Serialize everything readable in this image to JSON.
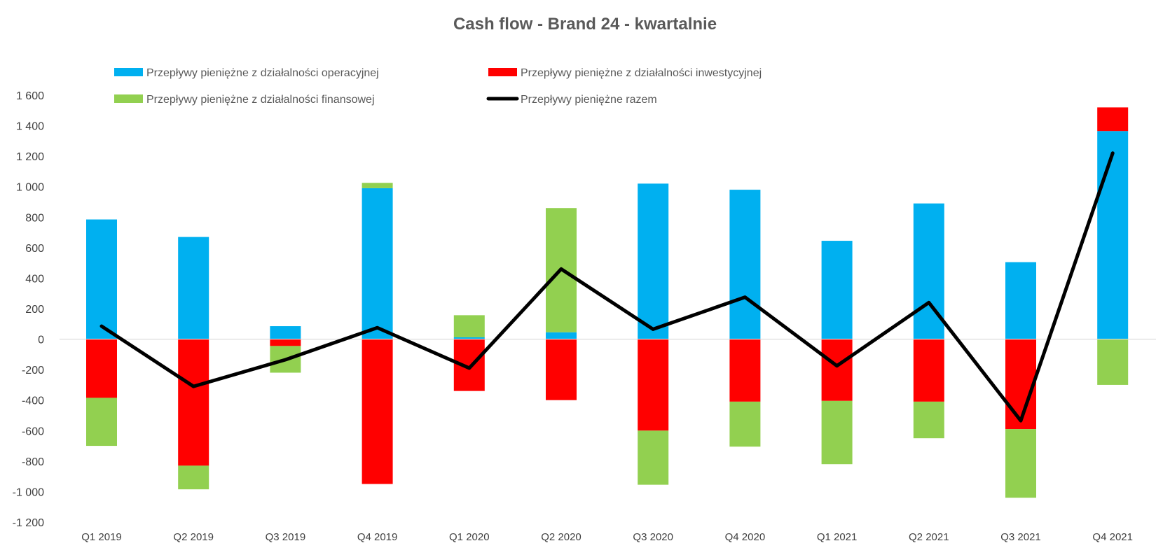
{
  "chart_data": {
    "type": "bar",
    "stacked": true,
    "title": "Cash flow - Brand 24 - kwartalnie",
    "xlabel": "",
    "ylabel": "",
    "ylim": [
      -1200,
      1600
    ],
    "yticks": [
      1600,
      1400,
      1200,
      1000,
      800,
      600,
      400,
      200,
      0,
      -200,
      -400,
      -600,
      -800,
      -1000,
      -1200
    ],
    "ytick_labels": [
      "1 600",
      "1 400",
      "1 200",
      "1 000",
      "800",
      "600",
      "400",
      "200",
      "0",
      "-200",
      "-400",
      "-600",
      "-800",
      "-1 000",
      "-1 200"
    ],
    "grid": false,
    "legend_position": "top",
    "categories": [
      "Q1 2019",
      "Q2 2019",
      "Q3 2019",
      "Q4 2019",
      "Q1 2020",
      "Q2 2020",
      "Q3 2020",
      "Q4 2020",
      "Q1 2021",
      "Q2 2021",
      "Q3 2021",
      "Q4 2021"
    ],
    "series": [
      {
        "name": "Przepływy pieniężne z działalności operacyjnej",
        "kind": "bar",
        "color": "#00b0f0",
        "values": [
          785,
          670,
          85,
          990,
          12,
          45,
          1020,
          980,
          645,
          890,
          505,
          1365
        ]
      },
      {
        "name": "Przepływy pieniężne z działalności inwestycyjnej",
        "kind": "bar",
        "color": "#ff0000",
        "values": [
          -385,
          -830,
          -45,
          -950,
          -340,
          -400,
          -600,
          -410,
          -405,
          -410,
          -590,
          155
        ]
      },
      {
        "name": "Przepływy pieniężne z działalności finansowej",
        "kind": "bar",
        "color": "#92d050",
        "values": [
          -315,
          -155,
          -175,
          35,
          145,
          815,
          -355,
          -295,
          -415,
          -240,
          -450,
          -300
        ]
      },
      {
        "name": "Przepływy pieniężne razem",
        "kind": "line",
        "color": "#000000",
        "values": [
          85,
          -310,
          -135,
          75,
          -190,
          460,
          65,
          275,
          -175,
          240,
          -535,
          1220
        ]
      }
    ]
  }
}
